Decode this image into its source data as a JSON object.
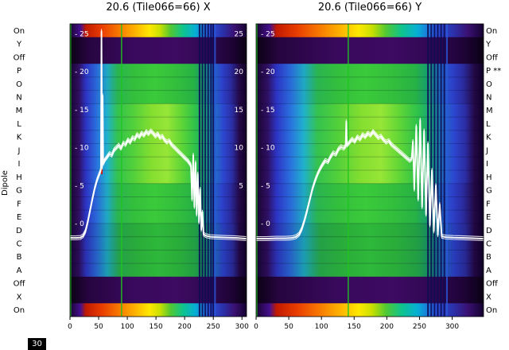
{
  "figure": {
    "corner_label": "30",
    "background": "#ffffff"
  },
  "chart_data": {
    "type": "heatmap",
    "ylabel": "Dipole",
    "curve_color": "#ffffff",
    "flag_color": "#0c0c55",
    "blue_line_color": "#2a58d8",
    "green_line_color": "#1ec41e",
    "rows_top_to_bottom": [
      {
        "label": "On",
        "band": "on"
      },
      {
        "label": "Y",
        "band": "off"
      },
      {
        "label": "Off",
        "band": "off"
      },
      {
        "label": "P",
        "band": "mid"
      },
      {
        "label": "O",
        "band": "mid"
      },
      {
        "label": "N",
        "band": "mid"
      },
      {
        "label": "M",
        "band": "mid_bright"
      },
      {
        "label": "L",
        "band": "mid_bright"
      },
      {
        "label": "K",
        "band": "mid_bright"
      },
      {
        "label": "J",
        "band": "mid_bright"
      },
      {
        "label": "I",
        "band": "mid_bright"
      },
      {
        "label": "H",
        "band": "mid_bright"
      },
      {
        "label": "G",
        "band": "mid"
      },
      {
        "label": "F",
        "band": "mid"
      },
      {
        "label": "E",
        "band": "mid"
      },
      {
        "label": "D",
        "band": "mid_dim"
      },
      {
        "label": "C",
        "band": "mid_dim"
      },
      {
        "label": "B",
        "band": "mid_dim"
      },
      {
        "label": "A",
        "band": "mid_dim"
      },
      {
        "label": "Off",
        "band": "off"
      },
      {
        "label": "X",
        "band": "off"
      },
      {
        "label": "On",
        "band": "on"
      }
    ],
    "right_row_labels": [
      "On",
      "Y",
      "Off",
      "P **",
      "O",
      "N",
      "M",
      "L",
      "K",
      "J",
      "I",
      "H",
      "G",
      "F",
      "E",
      "D",
      "C",
      "B",
      "A",
      "Off",
      "X",
      "On"
    ],
    "left_inner_ticks": [
      {
        "label": "- 25",
        "value": 25
      },
      {
        "label": "- 20",
        "value": 20
      },
      {
        "label": "- 15",
        "value": 15
      },
      {
        "label": "- 10",
        "value": 10
      },
      {
        "label": "- 5",
        "value": 5
      },
      {
        "label": "- 0",
        "value": 0
      }
    ],
    "colormap_stops": {
      "on": [
        [
          0,
          "#1a0333"
        ],
        [
          6,
          "#45108e"
        ],
        [
          9,
          "#c11a00"
        ],
        [
          18,
          "#e93d00"
        ],
        [
          28,
          "#f87a00"
        ],
        [
          37,
          "#ffb300"
        ],
        [
          45,
          "#ffe800"
        ],
        [
          51,
          "#c8e000"
        ],
        [
          57,
          "#52c832"
        ],
        [
          64,
          "#0fc48c"
        ],
        [
          71,
          "#06aed6"
        ],
        [
          79,
          "#2b53dd"
        ],
        [
          87,
          "#2b2fa8"
        ],
        [
          93,
          "#3a1173"
        ],
        [
          100,
          "#150130"
        ]
      ],
      "off": [
        [
          0,
          "#0b0114"
        ],
        [
          10,
          "#26053f"
        ],
        [
          35,
          "#38095c"
        ],
        [
          60,
          "#3d0b62"
        ],
        [
          80,
          "#2e0750"
        ],
        [
          92,
          "#1c0334"
        ],
        [
          100,
          "#0b0114"
        ]
      ],
      "mid": [
        [
          0,
          "#180431"
        ],
        [
          5,
          "#2f0f60"
        ],
        [
          9,
          "#2c34c4"
        ],
        [
          15,
          "#2a68d8"
        ],
        [
          21,
          "#1fa8c4"
        ],
        [
          27,
          "#2ab450"
        ],
        [
          36,
          "#33bf3c"
        ],
        [
          48,
          "#3bca3b"
        ],
        [
          60,
          "#33bf3c"
        ],
        [
          70,
          "#27b245"
        ],
        [
          76,
          "#159c74"
        ],
        [
          81,
          "#2168c4"
        ],
        [
          86,
          "#2c42cc"
        ],
        [
          91,
          "#2a2b9e"
        ],
        [
          96,
          "#230845"
        ],
        [
          100,
          "#100127"
        ]
      ],
      "mid_bright": [
        [
          0,
          "#180431"
        ],
        [
          5,
          "#2f0f60"
        ],
        [
          9,
          "#2c34c4"
        ],
        [
          15,
          "#2a70de"
        ],
        [
          21,
          "#20b2cc"
        ],
        [
          27,
          "#34c24e"
        ],
        [
          36,
          "#52d03a"
        ],
        [
          46,
          "#84de30"
        ],
        [
          55,
          "#96e636"
        ],
        [
          63,
          "#60d636"
        ],
        [
          71,
          "#2ec24a"
        ],
        [
          77,
          "#17a47c"
        ],
        [
          82,
          "#2270c8"
        ],
        [
          87,
          "#2c46d0"
        ],
        [
          92,
          "#2b2da2"
        ],
        [
          96,
          "#240846"
        ],
        [
          100,
          "#100127"
        ]
      ],
      "mid_dim": [
        [
          0,
          "#160430"
        ],
        [
          5,
          "#2b0d58"
        ],
        [
          9,
          "#2a30b2"
        ],
        [
          15,
          "#2660c6"
        ],
        [
          21,
          "#1c9cb4"
        ],
        [
          28,
          "#24a047"
        ],
        [
          38,
          "#2aac3a"
        ],
        [
          50,
          "#2eb83a"
        ],
        [
          62,
          "#2aac3a"
        ],
        [
          71,
          "#219e44"
        ],
        [
          77,
          "#128566"
        ],
        [
          82,
          "#1f60b2"
        ],
        [
          87,
          "#283cba"
        ],
        [
          92,
          "#272892"
        ],
        [
          96,
          "#210742"
        ],
        [
          100,
          "#0f0126"
        ]
      ]
    },
    "panels": [
      {
        "title": "20.6 (Tile066=66) X",
        "x_ticks": [
          0,
          50,
          100,
          150,
          200,
          250,
          300
        ],
        "x_max": 308,
        "right_inner_ticks": [
          {
            "label": "25",
            "value": 25
          },
          {
            "label": "20",
            "value": 20
          },
          {
            "label": "15",
            "value": 15
          },
          {
            "label": "10",
            "value": 10
          },
          {
            "label": "5",
            "value": 5
          }
        ],
        "flag_channels": [
          226,
          231,
          236,
          241,
          246,
          250
        ],
        "blue_channels": [
          253
        ],
        "green_channels": [
          1,
          90
        ],
        "marks": [
          {
            "ch": 55.5,
            "fy": 0.5,
            "h": 10,
            "color": "#c81e00"
          }
        ],
        "curve": [
          [
            0,
            -1.9
          ],
          [
            10,
            -1.9
          ],
          [
            18,
            -1.85
          ],
          [
            23,
            -1.6
          ],
          [
            27,
            -1.0
          ],
          [
            31,
            0.2
          ],
          [
            35,
            1.7
          ],
          [
            39,
            3.2
          ],
          [
            43,
            4.6
          ],
          [
            47,
            5.7
          ],
          [
            51,
            6.5
          ],
          [
            54,
            7.1
          ],
          [
            55,
            25.3
          ],
          [
            56,
            7.4
          ],
          [
            57,
            16.8
          ],
          [
            58,
            7.9
          ],
          [
            61,
            8.4
          ],
          [
            65,
            8.8
          ],
          [
            69,
            9.2
          ],
          [
            73,
            9.0
          ],
          [
            77,
            9.7
          ],
          [
            81,
            10.0
          ],
          [
            85,
            10.3
          ],
          [
            89,
            9.9
          ],
          [
            93,
            10.6
          ],
          [
            97,
            10.4
          ],
          [
            101,
            11.0
          ],
          [
            105,
            10.7
          ],
          [
            109,
            11.3
          ],
          [
            113,
            11.1
          ],
          [
            117,
            11.7
          ],
          [
            121,
            11.4
          ],
          [
            125,
            11.9
          ],
          [
            129,
            11.6
          ],
          [
            133,
            12.1
          ],
          [
            137,
            11.8
          ],
          [
            141,
            12.2
          ],
          [
            145,
            11.9
          ],
          [
            149,
            11.5
          ],
          [
            153,
            11.8
          ],
          [
            157,
            11.3
          ],
          [
            161,
            11.5
          ],
          [
            165,
            11.0
          ],
          [
            169,
            10.7
          ],
          [
            173,
            10.9
          ],
          [
            177,
            10.4
          ],
          [
            181,
            10.1
          ],
          [
            185,
            9.8
          ],
          [
            189,
            9.5
          ],
          [
            193,
            9.2
          ],
          [
            197,
            8.9
          ],
          [
            201,
            8.6
          ],
          [
            205,
            8.3
          ],
          [
            209,
            7.9
          ],
          [
            211,
            7.6
          ],
          [
            213,
            3.2
          ],
          [
            215,
            9.0
          ],
          [
            217,
            2.2
          ],
          [
            219,
            8.0
          ],
          [
            221,
            1.2
          ],
          [
            223,
            6.5
          ],
          [
            225,
            0.2
          ],
          [
            227,
            4.5
          ],
          [
            229,
            -0.8
          ],
          [
            231,
            1.5
          ],
          [
            233,
            -1.4
          ],
          [
            237,
            -1.6
          ],
          [
            245,
            -1.75
          ],
          [
            258,
            -1.8
          ],
          [
            274,
            -1.85
          ],
          [
            290,
            -1.9
          ],
          [
            308,
            -2.0
          ]
        ]
      },
      {
        "title": "20.6 (Tile066=66) Y",
        "x_ticks": [
          0,
          50,
          100,
          150,
          200,
          250,
          300
        ],
        "x_max": 348,
        "right_inner_ticks": [],
        "flag_channels": [
          263,
          268,
          273,
          278,
          283,
          288
        ],
        "blue_channels": [
          292
        ],
        "green_channels": [
          1,
          141
        ],
        "marks": [],
        "curve": [
          [
            0,
            -2.0
          ],
          [
            15,
            -2.0
          ],
          [
            30,
            -1.95
          ],
          [
            45,
            -1.95
          ],
          [
            55,
            -1.9
          ],
          [
            61,
            -1.75
          ],
          [
            66,
            -1.4
          ],
          [
            70,
            -0.7
          ],
          [
            74,
            0.4
          ],
          [
            78,
            1.7
          ],
          [
            82,
            3.1
          ],
          [
            86,
            4.5
          ],
          [
            90,
            5.6
          ],
          [
            94,
            6.5
          ],
          [
            98,
            7.2
          ],
          [
            102,
            7.8
          ],
          [
            106,
            8.3
          ],
          [
            110,
            8.1
          ],
          [
            114,
            8.8
          ],
          [
            118,
            9.3
          ],
          [
            122,
            9.1
          ],
          [
            126,
            9.8
          ],
          [
            130,
            10.1
          ],
          [
            134,
            9.9
          ],
          [
            137,
            10.2
          ],
          [
            138,
            13.4
          ],
          [
            139,
            10.3
          ],
          [
            143,
            10.7
          ],
          [
            147,
            11.1
          ],
          [
            151,
            10.8
          ],
          [
            155,
            11.4
          ],
          [
            159,
            11.1
          ],
          [
            163,
            11.7
          ],
          [
            167,
            11.4
          ],
          [
            171,
            11.9
          ],
          [
            175,
            11.6
          ],
          [
            179,
            12.1
          ],
          [
            183,
            11.7
          ],
          [
            187,
            11.3
          ],
          [
            191,
            11.5
          ],
          [
            195,
            11.0
          ],
          [
            199,
            10.7
          ],
          [
            203,
            10.9
          ],
          [
            207,
            10.4
          ],
          [
            211,
            10.1
          ],
          [
            215,
            9.8
          ],
          [
            219,
            9.5
          ],
          [
            223,
            9.2
          ],
          [
            227,
            8.9
          ],
          [
            231,
            8.6
          ],
          [
            235,
            8.3
          ],
          [
            238,
            8.5
          ],
          [
            240,
            10.8
          ],
          [
            242,
            4.5
          ],
          [
            245,
            12.8
          ],
          [
            248,
            3.2
          ],
          [
            251,
            13.6
          ],
          [
            254,
            2.2
          ],
          [
            257,
            12.2
          ],
          [
            260,
            1.2
          ],
          [
            263,
            10.5
          ],
          [
            266,
            -0.2
          ],
          [
            269,
            7.0
          ],
          [
            272,
            -1.0
          ],
          [
            275,
            5.0
          ],
          [
            278,
            -1.5
          ],
          [
            281,
            2.5
          ],
          [
            284,
            -1.7
          ],
          [
            291,
            -1.8
          ],
          [
            302,
            -1.85
          ],
          [
            318,
            -1.9
          ],
          [
            334,
            -1.95
          ],
          [
            348,
            -2.0
          ]
        ]
      }
    ]
  }
}
